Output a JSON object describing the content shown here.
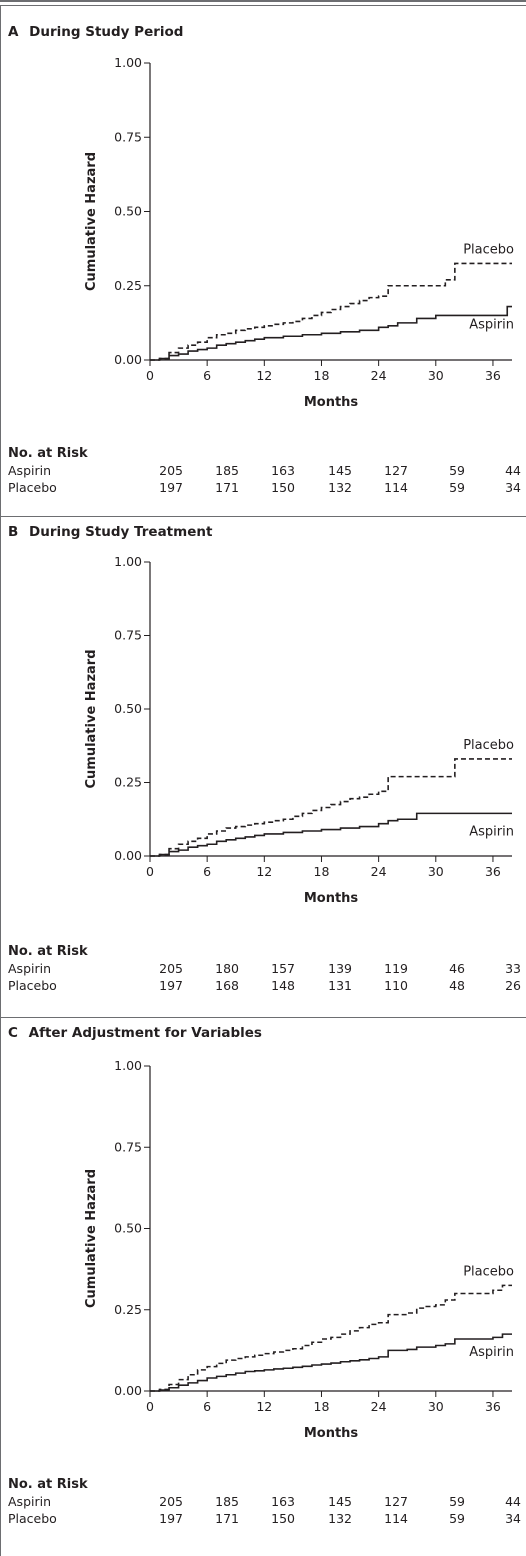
{
  "chart_data": [
    {
      "type": "line",
      "panel": "A",
      "title": "During Study Period",
      "xlabel": "Months",
      "ylabel": "Cumulative Hazard",
      "xticks": [
        "0",
        "6",
        "12",
        "18",
        "24",
        "30",
        "36"
      ],
      "yticks": [
        "0.00",
        "0.25",
        "0.50",
        "0.75",
        "1.00"
      ],
      "xlim": [
        0,
        38
      ],
      "ylim": [
        0,
        1.0
      ],
      "series": [
        {
          "name": "Placebo",
          "style": "dashed",
          "points": [
            [
              0,
              0
            ],
            [
              1,
              0.005
            ],
            [
              2,
              0.025
            ],
            [
              3,
              0.04
            ],
            [
              4,
              0.05
            ],
            [
              5,
              0.06
            ],
            [
              6,
              0.075
            ],
            [
              7,
              0.085
            ],
            [
              8,
              0.09
            ],
            [
              9,
              0.1
            ],
            [
              10,
              0.105
            ],
            [
              11,
              0.11
            ],
            [
              12,
              0.115
            ],
            [
              13,
              0.12
            ],
            [
              14,
              0.125
            ],
            [
              15,
              0.13
            ],
            [
              16,
              0.14
            ],
            [
              17,
              0.15
            ],
            [
              18,
              0.16
            ],
            [
              19,
              0.17
            ],
            [
              20,
              0.18
            ],
            [
              21,
              0.19
            ],
            [
              22,
              0.2
            ],
            [
              23,
              0.21
            ],
            [
              24,
              0.215
            ],
            [
              25,
              0.25
            ],
            [
              28,
              0.25
            ],
            [
              31,
              0.27
            ],
            [
              32,
              0.325
            ],
            [
              38,
              0.325
            ]
          ]
        },
        {
          "name": "Aspirin",
          "style": "solid",
          "points": [
            [
              0,
              0
            ],
            [
              1,
              0.005
            ],
            [
              2,
              0.015
            ],
            [
              3,
              0.02
            ],
            [
              4,
              0.03
            ],
            [
              5,
              0.035
            ],
            [
              6,
              0.04
            ],
            [
              7,
              0.05
            ],
            [
              8,
              0.055
            ],
            [
              9,
              0.06
            ],
            [
              10,
              0.065
            ],
            [
              11,
              0.07
            ],
            [
              12,
              0.075
            ],
            [
              14,
              0.08
            ],
            [
              16,
              0.085
            ],
            [
              18,
              0.09
            ],
            [
              20,
              0.095
            ],
            [
              22,
              0.1
            ],
            [
              24,
              0.11
            ],
            [
              25,
              0.115
            ],
            [
              26,
              0.125
            ],
            [
              28,
              0.14
            ],
            [
              30,
              0.15
            ],
            [
              37,
              0.15
            ],
            [
              37.5,
              0.18
            ],
            [
              38,
              0.18
            ]
          ]
        }
      ],
      "no_at_risk": {
        "title": "No. at Risk",
        "rows": [
          {
            "name": "Aspirin",
            "values": [
              "205",
              "185",
              "163",
              "145",
              "127",
              "59",
              "44"
            ]
          },
          {
            "name": "Placebo",
            "values": [
              "197",
              "171",
              "150",
              "132",
              "114",
              "59",
              "34"
            ]
          }
        ]
      }
    },
    {
      "type": "line",
      "panel": "B",
      "title": "During Study Treatment",
      "xlabel": "Months",
      "ylabel": "Cumulative Hazard",
      "xticks": [
        "0",
        "6",
        "12",
        "18",
        "24",
        "30",
        "36"
      ],
      "yticks": [
        "0.00",
        "0.25",
        "0.50",
        "0.75",
        "1.00"
      ],
      "xlim": [
        0,
        38
      ],
      "ylim": [
        0,
        1.0
      ],
      "series": [
        {
          "name": "Placebo",
          "style": "dashed",
          "points": [
            [
              0,
              0
            ],
            [
              1,
              0.005
            ],
            [
              2,
              0.025
            ],
            [
              3,
              0.04
            ],
            [
              4,
              0.05
            ],
            [
              5,
              0.06
            ],
            [
              6,
              0.075
            ],
            [
              7,
              0.085
            ],
            [
              8,
              0.095
            ],
            [
              9,
              0.1
            ],
            [
              10,
              0.105
            ],
            [
              11,
              0.11
            ],
            [
              12,
              0.115
            ],
            [
              13,
              0.12
            ],
            [
              14,
              0.125
            ],
            [
              15,
              0.135
            ],
            [
              16,
              0.145
            ],
            [
              17,
              0.155
            ],
            [
              18,
              0.165
            ],
            [
              19,
              0.175
            ],
            [
              20,
              0.185
            ],
            [
              21,
              0.195
            ],
            [
              22,
              0.2
            ],
            [
              23,
              0.21
            ],
            [
              24,
              0.22
            ],
            [
              25,
              0.27
            ],
            [
              31,
              0.27
            ],
            [
              32,
              0.33
            ],
            [
              38,
              0.33
            ]
          ]
        },
        {
          "name": "Aspirin",
          "style": "solid",
          "points": [
            [
              0,
              0
            ],
            [
              1,
              0.005
            ],
            [
              2,
              0.015
            ],
            [
              3,
              0.02
            ],
            [
              4,
              0.03
            ],
            [
              5,
              0.035
            ],
            [
              6,
              0.04
            ],
            [
              7,
              0.05
            ],
            [
              8,
              0.055
            ],
            [
              9,
              0.06
            ],
            [
              10,
              0.065
            ],
            [
              11,
              0.07
            ],
            [
              12,
              0.075
            ],
            [
              14,
              0.08
            ],
            [
              16,
              0.085
            ],
            [
              18,
              0.09
            ],
            [
              20,
              0.095
            ],
            [
              22,
              0.1
            ],
            [
              24,
              0.11
            ],
            [
              25,
              0.12
            ],
            [
              26,
              0.125
            ],
            [
              28,
              0.145
            ],
            [
              38,
              0.145
            ]
          ]
        }
      ],
      "no_at_risk": {
        "title": "No. at Risk",
        "rows": [
          {
            "name": "Aspirin",
            "values": [
              "205",
              "180",
              "157",
              "139",
              "119",
              "46",
              "33"
            ]
          },
          {
            "name": "Placebo",
            "values": [
              "197",
              "168",
              "148",
              "131",
              "110",
              "48",
              "26"
            ]
          }
        ]
      }
    },
    {
      "type": "line",
      "panel": "C",
      "title": "After Adjustment for Variables",
      "xlabel": "Months",
      "ylabel": "Cumulative Hazard",
      "xticks": [
        "0",
        "6",
        "12",
        "18",
        "24",
        "30",
        "36"
      ],
      "yticks": [
        "0.00",
        "0.25",
        "0.50",
        "0.75",
        "1.00"
      ],
      "xlim": [
        0,
        38
      ],
      "ylim": [
        0,
        1.0
      ],
      "series": [
        {
          "name": "Placebo",
          "style": "dashed",
          "points": [
            [
              0,
              0
            ],
            [
              1,
              0.005
            ],
            [
              2,
              0.02
            ],
            [
              3,
              0.035
            ],
            [
              4,
              0.05
            ],
            [
              5,
              0.065
            ],
            [
              6,
              0.075
            ],
            [
              7,
              0.085
            ],
            [
              8,
              0.095
            ],
            [
              9,
              0.1
            ],
            [
              10,
              0.105
            ],
            [
              11,
              0.11
            ],
            [
              12,
              0.115
            ],
            [
              13,
              0.12
            ],
            [
              14,
              0.125
            ],
            [
              15,
              0.13
            ],
            [
              16,
              0.14
            ],
            [
              17,
              0.15
            ],
            [
              18,
              0.16
            ],
            [
              19,
              0.165
            ],
            [
              20,
              0.175
            ],
            [
              21,
              0.185
            ],
            [
              22,
              0.195
            ],
            [
              23,
              0.205
            ],
            [
              24,
              0.21
            ],
            [
              25,
              0.235
            ],
            [
              27,
              0.24
            ],
            [
              28,
              0.255
            ],
            [
              29,
              0.26
            ],
            [
              30,
              0.265
            ],
            [
              31,
              0.28
            ],
            [
              32,
              0.3
            ],
            [
              36,
              0.31
            ],
            [
              37,
              0.325
            ],
            [
              38,
              0.325
            ]
          ]
        },
        {
          "name": "Aspirin",
          "style": "solid",
          "points": [
            [
              0,
              0
            ],
            [
              1,
              0.003
            ],
            [
              2,
              0.01
            ],
            [
              3,
              0.018
            ],
            [
              4,
              0.025
            ],
            [
              5,
              0.032
            ],
            [
              6,
              0.04
            ],
            [
              7,
              0.045
            ],
            [
              8,
              0.05
            ],
            [
              9,
              0.055
            ],
            [
              10,
              0.06
            ],
            [
              11,
              0.062
            ],
            [
              12,
              0.065
            ],
            [
              13,
              0.068
            ],
            [
              14,
              0.07
            ],
            [
              15,
              0.073
            ],
            [
              16,
              0.076
            ],
            [
              17,
              0.08
            ],
            [
              18,
              0.083
            ],
            [
              19,
              0.086
            ],
            [
              20,
              0.09
            ],
            [
              21,
              0.093
            ],
            [
              22,
              0.096
            ],
            [
              23,
              0.1
            ],
            [
              24,
              0.105
            ],
            [
              25,
              0.125
            ],
            [
              27,
              0.128
            ],
            [
              28,
              0.135
            ],
            [
              30,
              0.14
            ],
            [
              31,
              0.145
            ],
            [
              32,
              0.16
            ],
            [
              36,
              0.165
            ],
            [
              37,
              0.175
            ],
            [
              38,
              0.175
            ]
          ]
        }
      ],
      "no_at_risk": {
        "title": "No. at Risk",
        "rows": [
          {
            "name": "Aspirin",
            "values": [
              "205",
              "185",
              "163",
              "145",
              "127",
              "59",
              "44"
            ]
          },
          {
            "name": "Placebo",
            "values": [
              "197",
              "171",
              "150",
              "132",
              "114",
              "59",
              "34"
            ]
          }
        ]
      }
    }
  ]
}
